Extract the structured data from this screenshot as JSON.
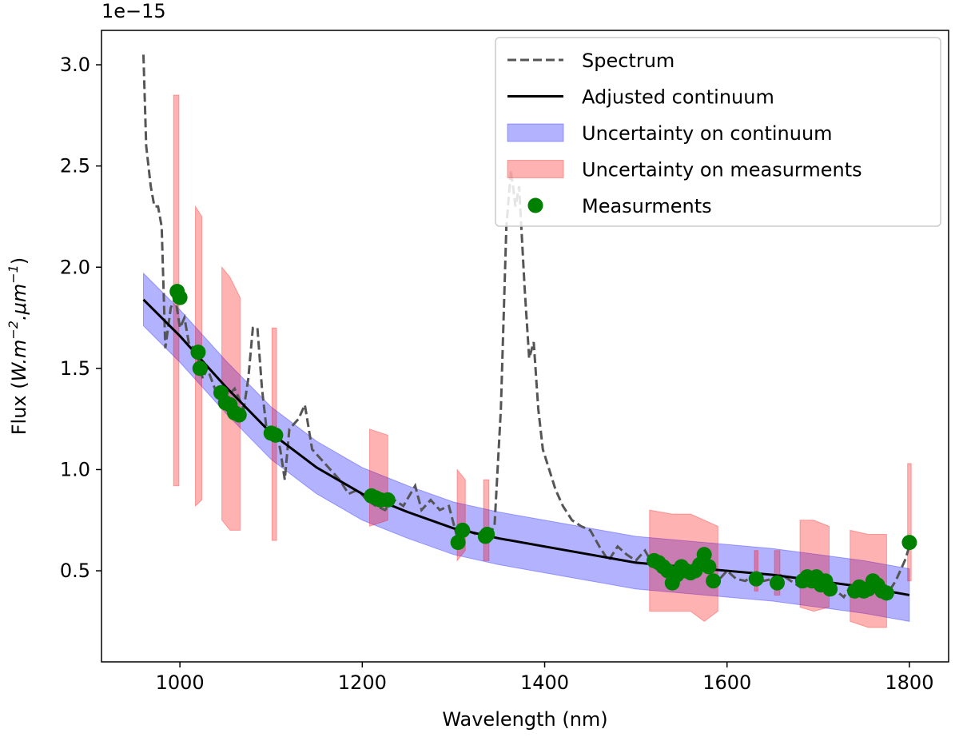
{
  "chart_data": {
    "type": "line",
    "offset_label": "1e−15",
    "xlabel": "Wavelength (nm)",
    "ylabel": [
      "Flux (",
      "W.m",
      "−2",
      ".μm",
      "−1",
      ")"
    ],
    "xlim": [
      914,
      1843
    ],
    "ylim": [
      0.05,
      3.17
    ],
    "xticks": [
      1000,
      1200,
      1400,
      1600,
      1800
    ],
    "yticks": [
      0.5,
      {
        "value": 1,
        "label": "1.0"
      },
      1.5,
      {
        "value": 2,
        "label": "2.0"
      },
      2.5,
      {
        "value": 3,
        "label": "3.0"
      }
    ],
    "grid": false,
    "legend": "upper right",
    "series": [
      {
        "name": "Spectrum",
        "type": "line",
        "style": "dashed",
        "color": "#555555",
        "x": [
          960,
          963,
          968,
          972,
          976,
          980,
          984,
          990,
          995,
          1000,
          1005,
          1010,
          1015,
          1020,
          1025,
          1030,
          1040,
          1050,
          1060,
          1070,
          1075,
          1080,
          1085,
          1090,
          1095,
          1100,
          1105,
          1110,
          1115,
          1120,
          1130,
          1137,
          1145,
          1155,
          1165,
          1175,
          1185,
          1195,
          1205,
          1215,
          1225,
          1235,
          1245,
          1258,
          1265,
          1275,
          1285,
          1295,
          1305,
          1315,
          1325,
          1335,
          1345,
          1352,
          1358,
          1363,
          1368,
          1372,
          1378,
          1383,
          1388,
          1393,
          1398,
          1405,
          1412,
          1420,
          1430,
          1440,
          1450,
          1460,
          1470,
          1480,
          1490,
          1500,
          1510,
          1520,
          1530,
          1540,
          1550,
          1560,
          1570,
          1580,
          1590,
          1600,
          1610,
          1620,
          1630,
          1640,
          1650,
          1660,
          1670,
          1680,
          1690,
          1700,
          1710,
          1720,
          1728,
          1735,
          1745,
          1755,
          1765,
          1775,
          1785,
          1795,
          1800
        ],
        "values": [
          3.05,
          2.6,
          2.4,
          2.3,
          2.3,
          2.2,
          1.6,
          1.8,
          1.85,
          1.7,
          1.75,
          1.62,
          1.6,
          1.55,
          1.45,
          1.5,
          1.38,
          1.35,
          1.4,
          1.3,
          1.45,
          1.7,
          1.7,
          1.4,
          1.2,
          1.15,
          1.2,
          1.1,
          0.95,
          1.2,
          1.25,
          1.32,
          1.1,
          1.05,
          1.0,
          0.95,
          0.88,
          0.9,
          0.85,
          0.82,
          0.8,
          0.85,
          0.82,
          0.92,
          0.8,
          0.85,
          0.8,
          0.82,
          0.65,
          0.7,
          0.68,
          0.65,
          0.72,
          1.3,
          2.2,
          2.48,
          2.3,
          2.4,
          1.9,
          1.55,
          1.63,
          1.3,
          1.1,
          1.0,
          0.9,
          0.82,
          0.75,
          0.72,
          0.7,
          0.62,
          0.55,
          0.62,
          0.58,
          0.55,
          0.6,
          0.52,
          0.5,
          0.45,
          0.5,
          0.48,
          0.55,
          0.48,
          0.45,
          0.5,
          0.46,
          0.45,
          0.48,
          0.45,
          0.46,
          0.48,
          0.45,
          0.42,
          0.44,
          0.46,
          0.42,
          0.4,
          0.37,
          0.42,
          0.4,
          0.42,
          0.4,
          0.38,
          0.45,
          0.55,
          0.62
        ]
      },
      {
        "name": "Adjusted continuum",
        "type": "line",
        "style": "solid",
        "color": "#000000",
        "x": [
          960,
          1000,
          1050,
          1100,
          1150,
          1200,
          1250,
          1300,
          1350,
          1400,
          1450,
          1500,
          1550,
          1600,
          1650,
          1700,
          1750,
          1800
        ],
        "values": [
          1.84,
          1.66,
          1.41,
          1.18,
          1.01,
          0.88,
          0.79,
          0.71,
          0.66,
          0.62,
          0.58,
          0.54,
          0.52,
          0.5,
          0.48,
          0.45,
          0.42,
          0.38
        ]
      },
      {
        "name": "Uncertainty on continuum",
        "type": "band",
        "color": "#0000ff",
        "x": [
          960,
          1000,
          1050,
          1100,
          1150,
          1200,
          1250,
          1300,
          1350,
          1400,
          1450,
          1500,
          1550,
          1600,
          1650,
          1700,
          1750,
          1800
        ],
        "lower": [
          1.71,
          1.53,
          1.28,
          1.05,
          0.88,
          0.75,
          0.66,
          0.58,
          0.53,
          0.49,
          0.45,
          0.41,
          0.39,
          0.37,
          0.35,
          0.32,
          0.29,
          0.25
        ],
        "upper": [
          1.97,
          1.79,
          1.54,
          1.31,
          1.14,
          1.01,
          0.92,
          0.84,
          0.79,
          0.75,
          0.71,
          0.67,
          0.65,
          0.63,
          0.61,
          0.58,
          0.55,
          0.51
        ]
      },
      {
        "name": "Uncertainty on measurments",
        "type": "band",
        "color": "#ff0000",
        "x": [
          993,
          999,
          null,
          1017,
          1024,
          null,
          1046,
          1055,
          1066,
          null,
          1101,
          1106,
          null,
          1208,
          1228,
          null,
          1304,
          1313,
          null,
          1333,
          1339,
          null,
          1515,
          1540,
          1560,
          1575,
          1590,
          null,
          1630,
          1634,
          null,
          1652,
          1658,
          null,
          1680,
          1695,
          1712,
          null,
          1735,
          1755,
          1775,
          null,
          1798,
          1802
        ],
        "lower": [
          0.92,
          0.92,
          null,
          0.82,
          0.85,
          null,
          0.75,
          0.7,
          0.7,
          null,
          0.65,
          0.65,
          null,
          0.72,
          0.75,
          null,
          0.55,
          0.6,
          null,
          0.55,
          0.55,
          null,
          0.3,
          0.3,
          0.3,
          0.25,
          0.3,
          null,
          0.4,
          0.4,
          null,
          0.38,
          0.38,
          null,
          0.32,
          0.3,
          0.32,
          null,
          0.25,
          0.22,
          0.22,
          null,
          0.45,
          0.45
        ],
        "upper": [
          2.85,
          2.85,
          null,
          2.3,
          2.25,
          null,
          2.0,
          1.95,
          1.85,
          null,
          1.7,
          1.7,
          null,
          1.2,
          1.17,
          null,
          1.0,
          0.95,
          null,
          0.95,
          0.95,
          null,
          0.8,
          0.78,
          0.78,
          0.75,
          0.72,
          null,
          0.6,
          0.6,
          null,
          0.6,
          0.6,
          null,
          0.75,
          0.75,
          0.72,
          null,
          0.7,
          0.68,
          0.68,
          null,
          1.03,
          1.03
        ]
      },
      {
        "name": "Measurments",
        "type": "scatter",
        "color": "#008000",
        "x": [
          997,
          1000,
          1020,
          1022,
          1045,
          1050,
          1055,
          1060,
          1065,
          1100,
          1105,
          1210,
          1215,
          1220,
          1228,
          1305,
          1310,
          1335,
          1337,
          1520,
          1525,
          1530,
          1535,
          1540,
          1545,
          1550,
          1555,
          1560,
          1565,
          1570,
          1575,
          1580,
          1585,
          1632,
          1655,
          1683,
          1688,
          1693,
          1698,
          1703,
          1708,
          1713,
          1740,
          1745,
          1750,
          1755,
          1760,
          1765,
          1770,
          1775,
          1800
        ],
        "values": [
          1.88,
          1.85,
          1.58,
          1.5,
          1.38,
          1.33,
          1.32,
          1.28,
          1.27,
          1.18,
          1.17,
          0.87,
          0.86,
          0.85,
          0.85,
          0.64,
          0.7,
          0.67,
          0.68,
          0.55,
          0.54,
          0.52,
          0.5,
          0.44,
          0.48,
          0.52,
          0.5,
          0.49,
          0.5,
          0.53,
          0.58,
          0.52,
          0.45,
          0.46,
          0.44,
          0.45,
          0.47,
          0.45,
          0.47,
          0.43,
          0.45,
          0.41,
          0.4,
          0.42,
          0.4,
          0.41,
          0.45,
          0.43,
          0.4,
          0.39,
          0.64
        ]
      }
    ]
  }
}
